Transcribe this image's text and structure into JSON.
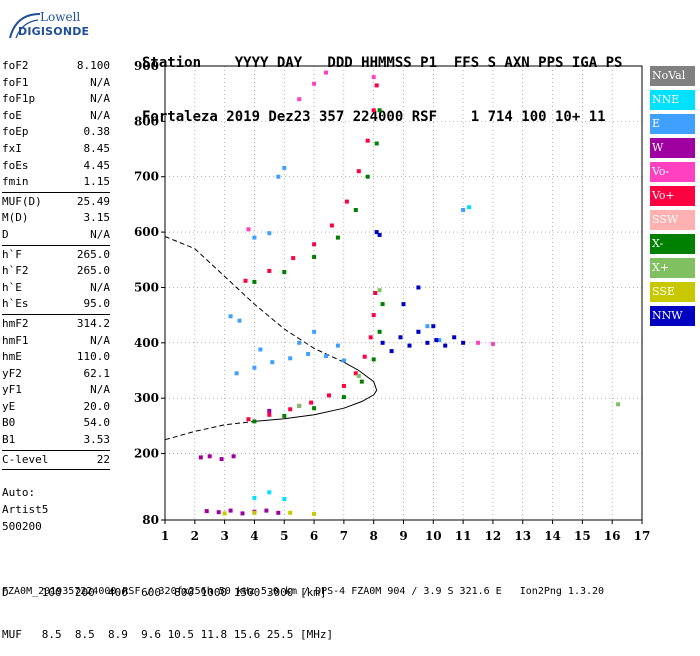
{
  "logo": {
    "line1": "Lowell",
    "line2": "DIGISONDE"
  },
  "header": {
    "labels": "Station    YYYY DAY   DDD HHMMSS P1  FFS S AXN PPS IGA PS",
    "values": "Fortaleza 2019 Dez23 357 224000 RSF    1 714 100 10+ 11"
  },
  "params": {
    "group1": [
      {
        "k": "foF2",
        "v": "8.100"
      },
      {
        "k": "foF1",
        "v": "N/A"
      },
      {
        "k": "foF1p",
        "v": "N/A"
      },
      {
        "k": "foE",
        "v": "N/A"
      },
      {
        "k": "foEp",
        "v": "0.38"
      },
      {
        "k": "fxI",
        "v": "8.45"
      },
      {
        "k": "foEs",
        "v": "4.45"
      },
      {
        "k": "fmin",
        "v": "1.15"
      }
    ],
    "group2": [
      {
        "k": "MUF(D)",
        "v": "25.49"
      },
      {
        "k": "M(D)",
        "v": "3.15"
      },
      {
        "k": "D",
        "v": "N/A"
      }
    ],
    "group3": [
      {
        "k": "h`F",
        "v": "265.0"
      },
      {
        "k": "h`F2",
        "v": "265.0"
      },
      {
        "k": "h`E",
        "v": "N/A"
      },
      {
        "k": "h`Es",
        "v": "95.0"
      }
    ],
    "group4": [
      {
        "k": "hmF2",
        "v": "314.2"
      },
      {
        "k": "hmF1",
        "v": "N/A"
      },
      {
        "k": "hmE",
        "v": "110.0"
      },
      {
        "k": "yF2",
        "v": "62.1"
      },
      {
        "k": "yF1",
        "v": "N/A"
      },
      {
        "k": "yE",
        "v": "20.0"
      },
      {
        "k": "B0",
        "v": "54.0"
      },
      {
        "k": "B1",
        "v": "3.53"
      }
    ],
    "group5": [
      {
        "k": "C-level",
        "v": "22"
      }
    ]
  },
  "auto": {
    "line1": "Auto:",
    "line2": "Artist5",
    "line3": "500200"
  },
  "legend": [
    {
      "label": "NoVal",
      "color": "#808080",
      "text_color": "#ffffff"
    },
    {
      "label": "NNE",
      "color": "#00e0ff",
      "text_color": "#ffffff"
    },
    {
      "label": "E",
      "color": "#40a0ff",
      "text_color": "#ffffff"
    },
    {
      "label": "W",
      "color": "#a000a0",
      "text_color": "#ffffff"
    },
    {
      "label": "Vo-",
      "color": "#ff40c0",
      "text_color": "#ffffff"
    },
    {
      "label": "Vo+",
      "color": "#ff0040",
      "text_color": "#ffffff"
    },
    {
      "label": "SSW",
      "color": "#ffb0b0",
      "text_color": "#ffffff"
    },
    {
      "label": "X-",
      "color": "#008000",
      "text_color": "#ffffff"
    },
    {
      "label": "X+",
      "color": "#80c060",
      "text_color": "#ffffff"
    },
    {
      "label": "SSE",
      "color": "#c8c800",
      "text_color": "#ffffff"
    },
    {
      "label": "NNW",
      "color": "#0000c0",
      "text_color": "#ffffff"
    }
  ],
  "bottom": {
    "line1": "D     100  200  400  600  800 1000 1500 3000 [km]",
    "line2": "MUF   8.5  8.5  8.9  9.6 10.5 11.8 15.6 25.5 [MHz]"
  },
  "footer": "FZA0M_2019357224000.RSF / 320fx256h 50 kHz 5.0 km / DPS-4 FZA0M 904 / 3.9 S 321.6 E   Ion2Png 1.3.20",
  "chart_data": {
    "type": "scatter",
    "xlim": [
      1,
      17
    ],
    "ylim": [
      80,
      900
    ],
    "x_ticks": [
      "1",
      "2",
      "3",
      "4",
      "5",
      "6",
      "7",
      "8",
      "9",
      "10",
      "11",
      "12",
      "13",
      "14",
      "15",
      "16",
      "17"
    ],
    "y_ticks": [
      "80",
      "200",
      "300",
      "400",
      "500",
      "600",
      "700",
      "800",
      "900"
    ],
    "grid": true,
    "series": [
      {
        "name": "Vo+",
        "color": "#ff0040",
        "points": [
          [
            3.8,
            262
          ],
          [
            4.5,
            270
          ],
          [
            5.2,
            280
          ],
          [
            5.9,
            292
          ],
          [
            6.5,
            305
          ],
          [
            7.0,
            322
          ],
          [
            7.4,
            345
          ],
          [
            7.7,
            375
          ],
          [
            7.9,
            410
          ],
          [
            8.0,
            450
          ],
          [
            8.05,
            490
          ],
          [
            3.7,
            512
          ],
          [
            4.5,
            530
          ],
          [
            5.3,
            553
          ],
          [
            6.0,
            578
          ],
          [
            6.6,
            612
          ],
          [
            7.1,
            655
          ],
          [
            7.5,
            710
          ],
          [
            7.8,
            765
          ],
          [
            8.0,
            820
          ],
          [
            8.1,
            865
          ]
        ]
      },
      {
        "name": "X-",
        "color": "#008000",
        "points": [
          [
            4.0,
            258
          ],
          [
            5.0,
            268
          ],
          [
            6.0,
            282
          ],
          [
            7.0,
            302
          ],
          [
            7.6,
            330
          ],
          [
            8.0,
            370
          ],
          [
            8.2,
            420
          ],
          [
            8.3,
            470
          ],
          [
            4.0,
            510
          ],
          [
            5.0,
            528
          ],
          [
            6.0,
            555
          ],
          [
            6.8,
            590
          ],
          [
            7.4,
            640
          ],
          [
            7.8,
            700
          ],
          [
            8.1,
            760
          ],
          [
            8.2,
            820
          ]
        ]
      },
      {
        "name": "E",
        "color": "#40a0ff",
        "points": [
          [
            3.4,
            345
          ],
          [
            4.0,
            355
          ],
          [
            4.6,
            365
          ],
          [
            5.2,
            372
          ],
          [
            5.8,
            380
          ],
          [
            6.4,
            376
          ],
          [
            7.0,
            368
          ],
          [
            3.2,
            448
          ],
          [
            3.5,
            440
          ],
          [
            4.2,
            388
          ],
          [
            5.5,
            400
          ],
          [
            6.0,
            420
          ],
          [
            6.8,
            395
          ],
          [
            4.0,
            590
          ],
          [
            4.5,
            598
          ],
          [
            4.8,
            700
          ],
          [
            5.0,
            716
          ],
          [
            9.5,
            420
          ],
          [
            9.8,
            430
          ],
          [
            10.2,
            405
          ],
          [
            11.0,
            640
          ]
        ]
      },
      {
        "name": "NNW",
        "color": "#0000c0",
        "points": [
          [
            8.3,
            400
          ],
          [
            8.6,
            385
          ],
          [
            8.9,
            410
          ],
          [
            9.2,
            395
          ],
          [
            9.5,
            420
          ],
          [
            9.8,
            400
          ],
          [
            10.1,
            405
          ],
          [
            10.4,
            395
          ],
          [
            10.7,
            410
          ],
          [
            11.0,
            400
          ],
          [
            9.0,
            470
          ],
          [
            9.5,
            500
          ],
          [
            10.0,
            430
          ],
          [
            8.1,
            600
          ],
          [
            8.2,
            595
          ]
        ]
      },
      {
        "name": "W",
        "color": "#a000a0",
        "points": [
          [
            2.4,
            96
          ],
          [
            2.8,
            94
          ],
          [
            3.2,
            97
          ],
          [
            3.6,
            92
          ],
          [
            4.0,
            95
          ],
          [
            4.4,
            97
          ],
          [
            4.8,
            93
          ],
          [
            2.2,
            193
          ],
          [
            2.5,
            195
          ],
          [
            2.9,
            190
          ],
          [
            3.3,
            195
          ],
          [
            4.5,
            277
          ],
          [
            5.5,
            286
          ]
        ]
      },
      {
        "name": "Vo-",
        "color": "#ff40c0",
        "points": [
          [
            3.8,
            605
          ],
          [
            5.5,
            840
          ],
          [
            6.0,
            868
          ],
          [
            6.4,
            888
          ],
          [
            8.0,
            880
          ],
          [
            11.5,
            400
          ],
          [
            12.0,
            398
          ]
        ]
      },
      {
        "name": "NNE",
        "color": "#00e0ff",
        "points": [
          [
            4.0,
            120
          ],
          [
            4.5,
            130
          ],
          [
            5.0,
            118
          ],
          [
            11.2,
            645
          ]
        ]
      },
      {
        "name": "X+",
        "color": "#80c060",
        "points": [
          [
            5.5,
            286
          ],
          [
            7.5,
            340
          ],
          [
            8.2,
            495
          ],
          [
            16.2,
            289
          ]
        ]
      },
      {
        "name": "SSE",
        "color": "#c8c800",
        "points": [
          [
            3.0,
            92
          ],
          [
            4.0,
            93
          ],
          [
            5.2,
            93
          ],
          [
            6.0,
            91
          ]
        ]
      }
    ],
    "profile_solid": [
      [
        4.0,
        258
      ],
      [
        5.0,
        263
      ],
      [
        6.0,
        270
      ],
      [
        7.0,
        282
      ],
      [
        7.6,
        294
      ],
      [
        8.0,
        306
      ],
      [
        8.1,
        314.2
      ],
      [
        8.0,
        330
      ],
      [
        7.5,
        350
      ],
      [
        7.0,
        365
      ]
    ],
    "profile_dashed_lower": [
      [
        1.0,
        225
      ],
      [
        2.0,
        240
      ],
      [
        3.0,
        252
      ],
      [
        4.0,
        258
      ]
    ],
    "profile_dashed_upper": [
      [
        7.0,
        365
      ],
      [
        6.0,
        390
      ],
      [
        5.0,
        425
      ],
      [
        4.0,
        470
      ],
      [
        3.0,
        520
      ],
      [
        2.0,
        570
      ],
      [
        1.0,
        592
      ]
    ]
  }
}
